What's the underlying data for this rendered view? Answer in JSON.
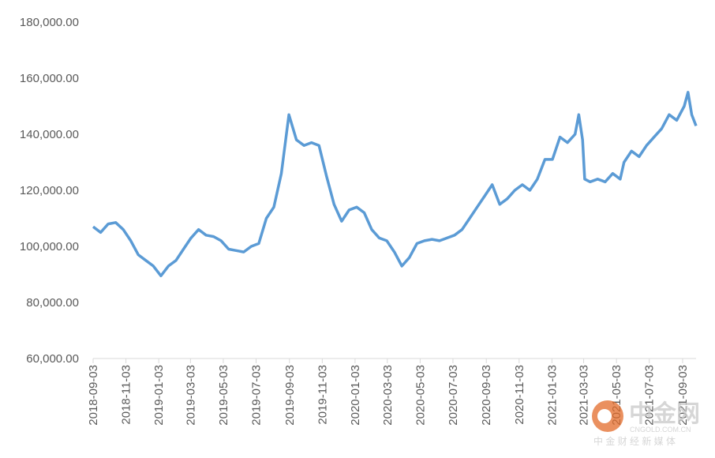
{
  "chart_data": {
    "type": "line",
    "x": [
      "2018-09-03",
      "2018-09-17",
      "2018-10-01",
      "2018-10-15",
      "2018-10-29",
      "2018-11-12",
      "2018-11-26",
      "2018-12-10",
      "2018-12-24",
      "2019-01-07",
      "2019-01-21",
      "2019-02-04",
      "2019-02-18",
      "2019-03-04",
      "2019-03-18",
      "2019-04-01",
      "2019-04-15",
      "2019-04-29",
      "2019-05-13",
      "2019-05-27",
      "2019-06-10",
      "2019-06-24",
      "2019-07-08",
      "2019-07-22",
      "2019-08-05",
      "2019-08-19",
      "2019-09-02",
      "2019-09-16",
      "2019-09-30",
      "2019-10-14",
      "2019-10-28",
      "2019-11-11",
      "2019-11-25",
      "2019-12-09",
      "2019-12-23",
      "2020-01-06",
      "2020-01-20",
      "2020-02-03",
      "2020-02-17",
      "2020-03-02",
      "2020-03-16",
      "2020-03-30",
      "2020-04-13",
      "2020-04-27",
      "2020-05-11",
      "2020-05-25",
      "2020-06-08",
      "2020-06-22",
      "2020-07-06",
      "2020-07-20",
      "2020-08-03",
      "2020-08-17",
      "2020-08-31",
      "2020-09-14",
      "2020-09-28",
      "2020-10-12",
      "2020-10-26",
      "2020-11-09",
      "2020-11-23",
      "2020-12-07",
      "2020-12-21",
      "2021-01-04",
      "2021-01-18",
      "2021-02-01",
      "2021-02-15",
      "2021-02-22",
      "2021-03-01",
      "2021-03-05",
      "2021-03-15",
      "2021-03-29",
      "2021-04-12",
      "2021-04-26",
      "2021-05-10",
      "2021-05-17",
      "2021-05-31",
      "2021-06-14",
      "2021-06-28",
      "2021-07-12",
      "2021-07-26",
      "2021-08-09",
      "2021-08-23",
      "2021-09-06",
      "2021-09-13",
      "2021-09-20",
      "2021-09-28"
    ],
    "series": [
      {
        "color": "#5b9bd5",
        "values": [
          107000,
          105000,
          108000,
          108500,
          106000,
          102000,
          97000,
          95000,
          93000,
          89500,
          93000,
          95000,
          99000,
          103000,
          106000,
          104000,
          103500,
          102000,
          99000,
          98500,
          98000,
          100000,
          101000,
          110000,
          114000,
          126000,
          147000,
          138000,
          136000,
          137000,
          136000,
          125000,
          115000,
          109000,
          113000,
          114000,
          112000,
          106000,
          103000,
          102000,
          98000,
          93000,
          96000,
          101000,
          102000,
          102500,
          102000,
          103000,
          104000,
          106000,
          110000,
          114000,
          118000,
          122000,
          115000,
          117000,
          120000,
          122000,
          120000,
          124000,
          131000,
          131000,
          139000,
          137000,
          140000,
          147000,
          138000,
          124000,
          123000,
          124000,
          123000,
          126000,
          124000,
          130000,
          134000,
          132000,
          136000,
          139000,
          142000,
          147000,
          145000,
          150000,
          155000,
          147000,
          143000
        ]
      }
    ],
    "ylim": [
      60000,
      180000
    ],
    "yticks": [
      {
        "value": 60000,
        "label": "60,000.00"
      },
      {
        "value": 80000,
        "label": "80,000.00"
      },
      {
        "value": 100000,
        "label": "100,000.00"
      },
      {
        "value": 120000,
        "label": "120,000.00"
      },
      {
        "value": 140000,
        "label": "140,000.00"
      },
      {
        "value": 160000,
        "label": "160,000.00"
      },
      {
        "value": 180000,
        "label": "180,000.00"
      }
    ],
    "xlim": [
      "2018-09-03",
      "2021-09-28"
    ],
    "xticks": [
      "2018-09-03",
      "2018-11-03",
      "2019-01-03",
      "2019-03-03",
      "2019-05-03",
      "2019-07-03",
      "2019-09-03",
      "2019-11-03",
      "2020-01-03",
      "2020-03-03",
      "2020-05-03",
      "2020-07-03",
      "2020-09-03",
      "2020-11-03",
      "2021-01-03",
      "2021-03-03",
      "2021-05-03",
      "2021-07-03",
      "2021-09-03"
    ],
    "watermark": {
      "logo": "中金网",
      "site": "CNGOLD.COM.CN",
      "tagline": "中 金 财 经 新 媒 体"
    }
  }
}
